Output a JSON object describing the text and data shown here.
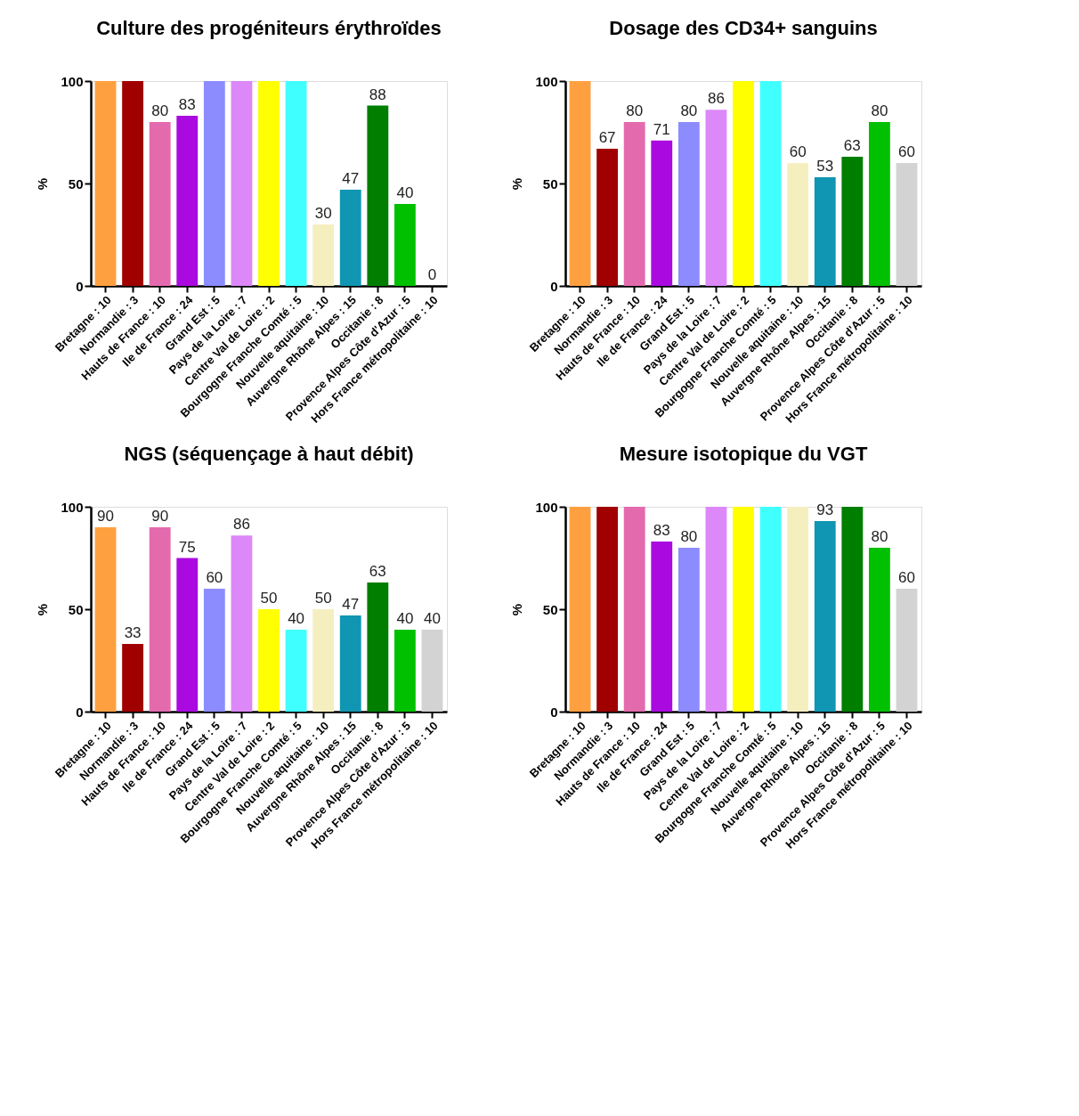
{
  "chart_data": [
    {
      "type": "bar",
      "title": "Culture des progéniteurs érythroïdes",
      "ylabel": "%",
      "categories": [
        "Bretagne : 10",
        "Normandie : 3",
        "Hauts de France : 10",
        "Ile de France : 24",
        "Grand Est : 5",
        "Pays de la Loire : 7",
        "Centre Val de Loire : 2",
        "Bourgogne Franche Comté : 5",
        "Nouvelle aquitaine : 10",
        "Auvergne Rhône Alpes : 15",
        "Occitanie : 8",
        "Provence Alpes Côte d'Azur : 5",
        "Hors France métropolitaine : 10"
      ],
      "values": [
        100,
        100,
        80,
        83,
        100,
        100,
        100,
        100,
        30,
        47,
        88,
        40,
        0
      ],
      "value_labels": [
        null,
        null,
        "80",
        "83",
        null,
        null,
        null,
        null,
        "30",
        "47",
        "88",
        "40",
        "0"
      ],
      "colors": [
        "#ffa040",
        "#a00000",
        "#e46aae",
        "#aa0ae0",
        "#8c8cff",
        "#dc88f8",
        "#ffff00",
        "#40ffff",
        "#f5efc0",
        "#1096b2",
        "#007e00",
        "#00c000",
        "#d3d3d3"
      ],
      "ylim": [
        0,
        100
      ],
      "yticks": [
        0,
        50,
        100
      ],
      "grid": false,
      "legend": false
    },
    {
      "type": "bar",
      "title": "Dosage des CD34+ sanguins",
      "ylabel": "%",
      "categories": [
        "Bretagne : 10",
        "Normandie : 3",
        "Hauts de France : 10",
        "Ile de France : 24",
        "Grand Est : 5",
        "Pays de la Loire : 7",
        "Centre Val de Loire : 2",
        "Bourgogne Franche Comté : 5",
        "Nouvelle aquitaine : 10",
        "Auvergne Rhône Alpes : 15",
        "Occitanie : 8",
        "Provence Alpes Côte d'Azur : 5",
        "Hors France métropolitaine : 10"
      ],
      "values": [
        100,
        67,
        80,
        71,
        80,
        86,
        100,
        100,
        60,
        53,
        63,
        80,
        60
      ],
      "value_labels": [
        null,
        "67",
        "80",
        "71",
        "80",
        "86",
        null,
        null,
        "60",
        "53",
        "63",
        "80",
        "60"
      ],
      "colors": [
        "#ffa040",
        "#a00000",
        "#e46aae",
        "#aa0ae0",
        "#8c8cff",
        "#dc88f8",
        "#ffff00",
        "#40ffff",
        "#f5efc0",
        "#1096b2",
        "#007e00",
        "#00c000",
        "#d3d3d3"
      ],
      "ylim": [
        0,
        100
      ],
      "yticks": [
        0,
        50,
        100
      ],
      "grid": false,
      "legend": false
    },
    {
      "type": "bar",
      "title": "NGS (séquençage à haut débit)",
      "ylabel": "%",
      "categories": [
        "Bretagne : 10",
        "Normandie : 3",
        "Hauts de France : 10",
        "Ile de France : 24",
        "Grand Est : 5",
        "Pays de la Loire : 7",
        "Centre Val de Loire : 2",
        "Bourgogne Franche Comté : 5",
        "Nouvelle aquitaine : 10",
        "Auvergne Rhône Alpes : 15",
        "Occitanie : 8",
        "Provence Alpes Côte d'Azur : 5",
        "Hors France métropolitaine : 10"
      ],
      "values": [
        90,
        33,
        90,
        75,
        60,
        86,
        50,
        40,
        50,
        47,
        63,
        40,
        40
      ],
      "data_labels": true,
      "colors": [
        "#ffa040",
        "#a00000",
        "#e46aae",
        "#aa0ae0",
        "#8c8cff",
        "#dc88f8",
        "#ffff00",
        "#40ffff",
        "#f5efc0",
        "#1096b2",
        "#007e00",
        "#00c000",
        "#d3d3d3"
      ],
      "ylim": [
        0,
        100
      ],
      "yticks": [
        0,
        50,
        100
      ],
      "grid": false,
      "legend": false
    },
    {
      "type": "bar",
      "title": "Mesure isotopique du VGT",
      "ylabel": "%",
      "categories": [
        "Bretagne : 10",
        "Normandie : 3",
        "Hauts de France : 10",
        "Ile de France : 24",
        "Grand Est : 5",
        "Pays de la Loire : 7",
        "Centre Val de Loire : 2",
        "Bourgogne Franche Comté : 5",
        "Nouvelle aquitaine : 10",
        "Auvergne Rhône Alpes : 15",
        "Occitanie : 8",
        "Provence Alpes Côte d'Azur : 5",
        "Hors France métropolitaine : 10"
      ],
      "values": [
        100,
        100,
        100,
        83,
        80,
        100,
        100,
        100,
        100,
        93,
        100,
        80,
        60
      ],
      "value_labels": [
        null,
        null,
        null,
        "83",
        "80",
        null,
        null,
        null,
        null,
        "93",
        null,
        "80",
        "60"
      ],
      "colors": [
        "#ffa040",
        "#a00000",
        "#e46aae",
        "#aa0ae0",
        "#8c8cff",
        "#dc88f8",
        "#ffff00",
        "#40ffff",
        "#f5efc0",
        "#1096b2",
        "#007e00",
        "#00c000",
        "#d3d3d3"
      ],
      "ylim": [
        0,
        100
      ],
      "yticks": [
        0,
        50,
        100
      ],
      "grid": false,
      "legend": false
    }
  ]
}
